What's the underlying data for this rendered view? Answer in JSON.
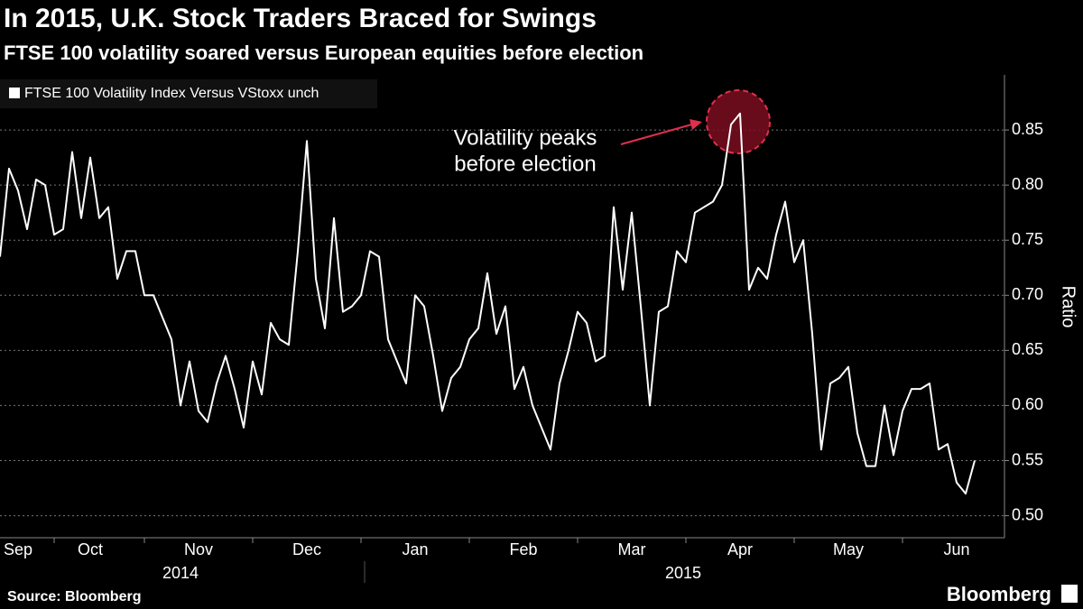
{
  "chart_data": {
    "type": "line",
    "title": "In 2015, U.K. Stock Traders Braced for Swings",
    "subtitle": "FTSE 100 volatility soared versus European equities before election",
    "y_axis_label": "Ratio",
    "source": "Source: Bloomberg",
    "brand": "Bloomberg",
    "annotation": [
      "Volatility peaks",
      "before election"
    ],
    "year_labels": [
      "2014",
      "2015"
    ],
    "categories": [
      null,
      null,
      "Sep",
      null,
      null,
      null,
      null,
      null,
      null,
      null,
      "Oct",
      null,
      null,
      null,
      null,
      null,
      null,
      null,
      null,
      null,
      null,
      null,
      "Nov",
      null,
      null,
      null,
      null,
      null,
      null,
      null,
      null,
      null,
      null,
      null,
      "Dec",
      null,
      null,
      null,
      null,
      null,
      null,
      null,
      null,
      null,
      null,
      null,
      "Jan",
      null,
      null,
      null,
      null,
      null,
      null,
      null,
      null,
      null,
      null,
      null,
      "Feb",
      null,
      null,
      null,
      null,
      null,
      null,
      null,
      null,
      null,
      null,
      null,
      "Mar",
      null,
      null,
      null,
      null,
      null,
      null,
      null,
      null,
      null,
      null,
      null,
      "Apr",
      null,
      null,
      null,
      null,
      null,
      null,
      null,
      null,
      null,
      null,
      null,
      "May",
      null,
      null,
      null,
      null,
      null,
      null,
      null,
      null,
      null,
      null,
      null,
      "Jun",
      null,
      null
    ],
    "series": [
      {
        "name": "FTSE 100 Volatility Index Versus VStoxx  unch",
        "color": "#ffffff",
        "values": [
          0.735,
          0.815,
          0.795,
          0.76,
          0.805,
          0.8,
          0.755,
          0.76,
          0.83,
          0.77,
          0.825,
          0.77,
          0.78,
          0.715,
          0.74,
          0.74,
          0.7,
          0.7,
          0.68,
          0.66,
          0.6,
          0.64,
          0.595,
          0.585,
          0.62,
          0.645,
          0.615,
          0.58,
          0.64,
          0.61,
          0.675,
          0.66,
          0.655,
          0.74,
          0.84,
          0.715,
          0.67,
          0.77,
          0.685,
          0.69,
          0.7,
          0.74,
          0.735,
          0.66,
          0.64,
          0.62,
          0.7,
          0.69,
          0.645,
          0.595,
          0.625,
          0.635,
          0.66,
          0.67,
          0.72,
          0.665,
          0.69,
          0.615,
          0.635,
          0.6,
          0.58,
          0.56,
          0.62,
          0.65,
          0.685,
          0.675,
          0.64,
          0.645,
          0.78,
          0.705,
          0.775,
          0.69,
          0.6,
          0.685,
          0.69,
          0.74,
          0.73,
          0.775,
          0.78,
          0.785,
          0.8,
          0.855,
          0.865,
          0.705,
          0.725,
          0.715,
          0.755,
          0.785,
          0.73,
          0.75,
          0.665,
          0.56,
          0.62,
          0.625,
          0.635,
          0.575,
          0.545,
          0.545,
          0.6,
          0.555,
          0.595,
          0.615,
          0.615,
          0.62,
          0.56,
          0.565,
          0.53,
          0.52,
          0.55
        ]
      }
    ],
    "ylim": [
      0.48,
      0.9
    ],
    "yticks": [
      {
        "value": 0.5,
        "label": "0.50"
      },
      0.55,
      {
        "value": 0.6,
        "label": "0.60"
      },
      0.65,
      {
        "value": 0.7,
        "label": "0.70"
      },
      0.75,
      {
        "value": 0.8,
        "label": "0.80"
      },
      0.85
    ],
    "grid": true,
    "legend": "top-left"
  }
}
